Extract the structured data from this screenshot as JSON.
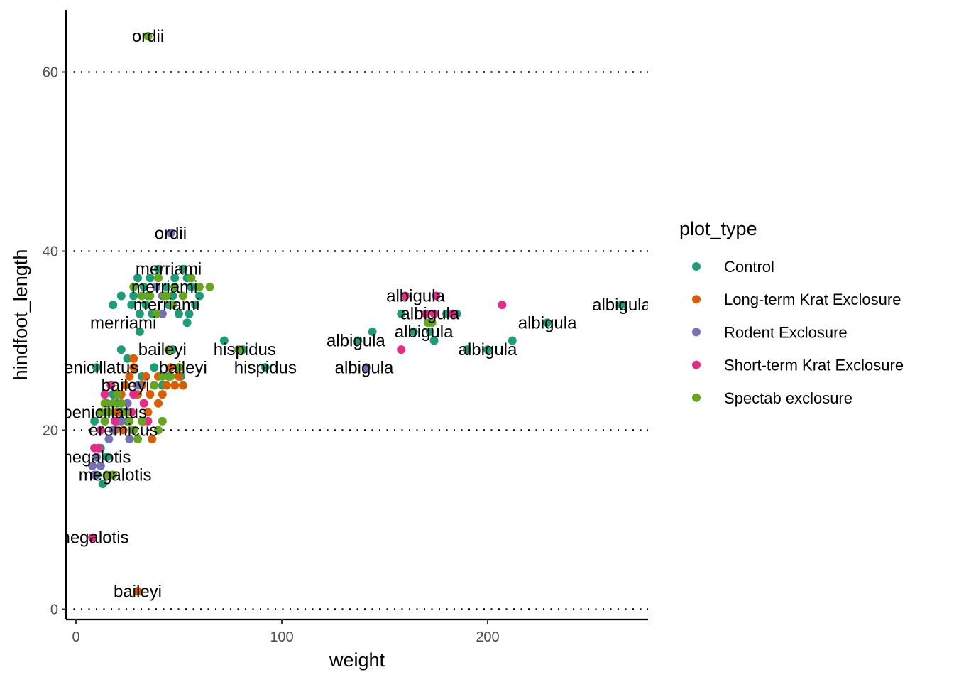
{
  "chart_data": {
    "type": "scatter",
    "title": "",
    "xlabel": "weight",
    "ylabel": "hindfoot_length",
    "xlim": [
      -5,
      278
    ],
    "ylim": [
      -1,
      67
    ],
    "xticks": [
      0,
      100,
      200
    ],
    "yticks": [
      0,
      20,
      40,
      60
    ],
    "grid": {
      "major_y": "dotted",
      "major_x": "none"
    },
    "legend": {
      "title": "plot_type",
      "position": "right"
    },
    "colors": {
      "Control": "#1B9E77",
      "Long-term Krat Exclosure": "#D95F02",
      "Rodent Exclosure": "#7570B3",
      "Short-term Krat Exclosure": "#E7298A",
      "Spectab exclosure": "#66A61E"
    },
    "series": [
      {
        "name": "Control",
        "points": [
          [
            35,
            64
          ],
          [
            22,
            35
          ],
          [
            30,
            37
          ],
          [
            33,
            36
          ],
          [
            36,
            37
          ],
          [
            40,
            38
          ],
          [
            44,
            36
          ],
          [
            48,
            37
          ],
          [
            52,
            38
          ],
          [
            56,
            36
          ],
          [
            60,
            35
          ],
          [
            54,
            37
          ],
          [
            27,
            34
          ],
          [
            31,
            33
          ],
          [
            35,
            35
          ],
          [
            45,
            34
          ],
          [
            50,
            33
          ],
          [
            55,
            33
          ],
          [
            54,
            32
          ],
          [
            37,
            33
          ],
          [
            28,
            35
          ],
          [
            34,
            34
          ],
          [
            42,
            33
          ],
          [
            47,
            35
          ],
          [
            58,
            34
          ],
          [
            31,
            31
          ],
          [
            18,
            34
          ],
          [
            22,
            29
          ],
          [
            25,
            28
          ],
          [
            32,
            26
          ],
          [
            38,
            27
          ],
          [
            42,
            25
          ],
          [
            45,
            26
          ],
          [
            47,
            29
          ],
          [
            51,
            26
          ],
          [
            15,
            23
          ],
          [
            18,
            24
          ],
          [
            20,
            23
          ],
          [
            22,
            22
          ],
          [
            25,
            21
          ],
          [
            28,
            20
          ],
          [
            14,
            21
          ],
          [
            20,
            21
          ],
          [
            9,
            21
          ],
          [
            10,
            27
          ],
          [
            12,
            18
          ],
          [
            15,
            17
          ],
          [
            10,
            15
          ],
          [
            13,
            14
          ],
          [
            72,
            30
          ],
          [
            81,
            29
          ],
          [
            92,
            27
          ],
          [
            137,
            30
          ],
          [
            144,
            31
          ],
          [
            158,
            33
          ],
          [
            164,
            31
          ],
          [
            172,
            31
          ],
          [
            174,
            30
          ],
          [
            180,
            33
          ],
          [
            185,
            33
          ],
          [
            190,
            29
          ],
          [
            200,
            29
          ],
          [
            212,
            30
          ],
          [
            229,
            32
          ],
          [
            265,
            34
          ]
        ]
      },
      {
        "name": "Long-term Krat Exclosure",
        "points": [
          [
            30,
            2
          ],
          [
            20,
            22
          ],
          [
            22,
            24
          ],
          [
            24,
            25
          ],
          [
            26,
            26
          ],
          [
            28,
            27
          ],
          [
            30,
            24
          ],
          [
            32,
            25
          ],
          [
            34,
            26
          ],
          [
            36,
            24
          ],
          [
            38,
            25
          ],
          [
            40,
            26
          ],
          [
            42,
            24
          ],
          [
            44,
            25
          ],
          [
            46,
            27
          ],
          [
            48,
            25
          ],
          [
            50,
            26
          ],
          [
            52,
            25
          ],
          [
            28,
            28
          ],
          [
            35,
            22
          ],
          [
            40,
            23
          ],
          [
            25,
            23
          ],
          [
            33,
            21
          ],
          [
            37,
            19
          ],
          [
            19,
            20
          ],
          [
            23,
            20
          ]
        ]
      },
      {
        "name": "Rodent Exclosure",
        "points": [
          [
            46,
            42
          ],
          [
            141,
            27
          ],
          [
            42,
            35
          ],
          [
            39,
            36
          ],
          [
            42,
            33
          ],
          [
            25,
            23
          ],
          [
            22,
            21
          ],
          [
            18,
            20
          ],
          [
            15,
            22
          ],
          [
            28,
            24
          ],
          [
            30,
            25
          ],
          [
            26,
            19
          ],
          [
            16,
            19
          ],
          [
            10,
            17
          ],
          [
            8,
            16
          ],
          [
            9,
            15
          ],
          [
            12,
            16
          ]
        ]
      },
      {
        "name": "Short-term Krat Exclosure",
        "points": [
          [
            8,
            8
          ],
          [
            9,
            18
          ],
          [
            11,
            18
          ],
          [
            14,
            24
          ],
          [
            17,
            25
          ],
          [
            20,
            24
          ],
          [
            27,
            22
          ],
          [
            35,
            21
          ],
          [
            12,
            20
          ],
          [
            19,
            21
          ],
          [
            28,
            24
          ],
          [
            33,
            23
          ],
          [
            158,
            29
          ],
          [
            160,
            35
          ],
          [
            170,
            33
          ],
          [
            174,
            33
          ],
          [
            175,
            35
          ],
          [
            183,
            33
          ],
          [
            207,
            34
          ]
        ]
      },
      {
        "name": "Spectab exclosure",
        "points": [
          [
            35,
            64
          ],
          [
            28,
            36
          ],
          [
            32,
            35
          ],
          [
            36,
            35
          ],
          [
            40,
            37
          ],
          [
            44,
            35
          ],
          [
            48,
            36
          ],
          [
            52,
            35
          ],
          [
            56,
            37
          ],
          [
            60,
            36
          ],
          [
            65,
            36
          ],
          [
            43,
            35
          ],
          [
            39,
            33
          ],
          [
            47,
            34
          ],
          [
            45,
            29
          ],
          [
            42,
            26
          ],
          [
            46,
            26
          ],
          [
            50,
            27
          ],
          [
            38,
            25
          ],
          [
            14,
            21
          ],
          [
            16,
            22
          ],
          [
            18,
            23
          ],
          [
            20,
            24
          ],
          [
            22,
            23
          ],
          [
            24,
            22
          ],
          [
            26,
            21
          ],
          [
            28,
            20
          ],
          [
            30,
            19
          ],
          [
            12,
            22
          ],
          [
            14,
            23
          ],
          [
            32,
            21
          ],
          [
            15,
            15
          ],
          [
            18,
            15
          ],
          [
            40,
            20
          ],
          [
            42,
            21
          ],
          [
            79,
            29
          ],
          [
            171,
            32
          ],
          [
            173,
            32
          ]
        ]
      }
    ],
    "annotations": [
      {
        "text": "ordii",
        "x": 35,
        "y": 64
      },
      {
        "text": "ordii",
        "x": 46,
        "y": 42
      },
      {
        "text": "merriami",
        "x": 45,
        "y": 38
      },
      {
        "text": "merriami",
        "x": 43,
        "y": 36
      },
      {
        "text": "merriami",
        "x": 44,
        "y": 34
      },
      {
        "text": "merriami",
        "x": 23,
        "y": 32
      },
      {
        "text": "baileyi",
        "x": 42,
        "y": 29
      },
      {
        "text": "baileyi",
        "x": 52,
        "y": 27
      },
      {
        "text": "baileyi",
        "x": 24,
        "y": 25
      },
      {
        "text": "baileyi",
        "x": 30,
        "y": 2
      },
      {
        "text": "penicillatus",
        "x": 10,
        "y": 27
      },
      {
        "text": "penicillatus",
        "x": 14,
        "y": 22
      },
      {
        "text": "eremicus",
        "x": 23,
        "y": 20
      },
      {
        "text": "megalotis",
        "x": 9,
        "y": 17
      },
      {
        "text": "megalotis",
        "x": 19,
        "y": 15
      },
      {
        "text": "megalotis",
        "x": 8,
        "y": 8
      },
      {
        "text": "hispidus",
        "x": 82,
        "y": 29
      },
      {
        "text": "hispidus",
        "x": 92,
        "y": 27
      },
      {
        "text": "albigula",
        "x": 136,
        "y": 30
      },
      {
        "text": "albigula",
        "x": 140,
        "y": 27
      },
      {
        "text": "albigula",
        "x": 165,
        "y": 35
      },
      {
        "text": "albigula",
        "x": 172,
        "y": 33
      },
      {
        "text": "albigula",
        "x": 169,
        "y": 31
      },
      {
        "text": "albigula",
        "x": 200,
        "y": 29
      },
      {
        "text": "albigula",
        "x": 229,
        "y": 32
      },
      {
        "text": "albigula",
        "x": 265,
        "y": 34
      }
    ]
  }
}
